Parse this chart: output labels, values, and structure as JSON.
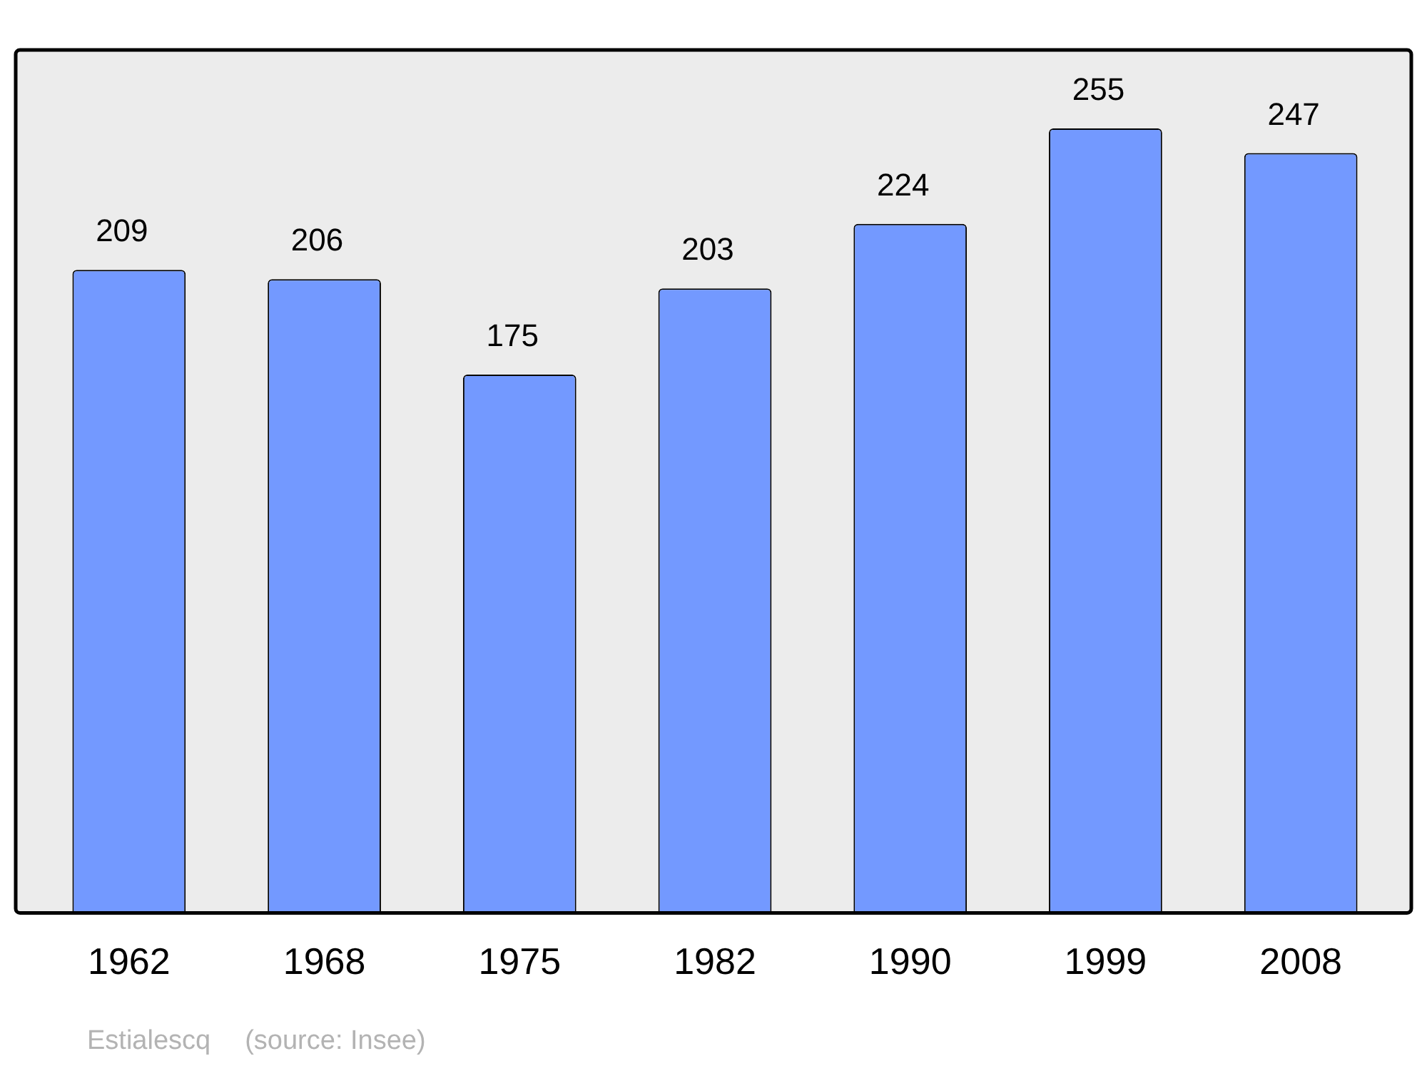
{
  "chart_data": {
    "type": "bar",
    "categories": [
      "1962",
      "1968",
      "1975",
      "1982",
      "1990",
      "1999",
      "2008"
    ],
    "values": [
      209,
      206,
      175,
      203,
      224,
      255,
      247
    ],
    "color": "#7399ff",
    "data_labels": true,
    "grid": false,
    "annotations": [
      "Estialescq",
      "(source: Insee)"
    ]
  }
}
